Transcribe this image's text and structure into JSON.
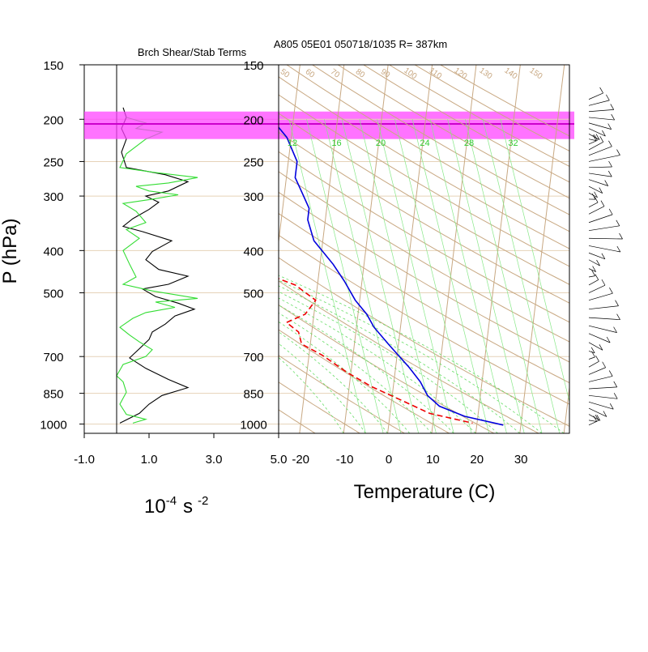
{
  "chart_data": [
    {
      "type": "line",
      "panel": "shear-stability",
      "title": "Brch Shear/Stab Terms",
      "xlabel_base": "10",
      "xlabel_exp1": "-4",
      "xlabel_unit": "s",
      "xlabel_exp2": "-2",
      "ylabel": "P (hPa)",
      "xlim": [
        -1.0,
        5.0
      ],
      "x_ticks": [
        "-1.0",
        "1.0",
        "3.0",
        "5.0"
      ],
      "x_tick_values": [
        -1,
        1,
        3,
        5
      ],
      "y_ticks": [
        "150",
        "200",
        "250",
        "300",
        "400",
        "500",
        "700",
        "850",
        "1000"
      ],
      "y_tick_values": [
        150,
        200,
        250,
        300,
        400,
        500,
        700,
        850,
        1000
      ],
      "ylim": [
        150,
        1050
      ],
      "y_scale": "log",
      "zero_line": 0,
      "series": [
        {
          "color": "#000000",
          "points": [
            [
              0.2,
              188
            ],
            [
              0.3,
              198
            ],
            [
              0.15,
              210
            ],
            [
              0.3,
              222
            ],
            [
              0.15,
              238
            ],
            [
              0.3,
              258
            ],
            [
              1.5,
              268
            ],
            [
              2.2,
              278
            ],
            [
              1.6,
              292
            ],
            [
              0.9,
              300
            ],
            [
              1.3,
              310
            ],
            [
              1.0,
              322
            ],
            [
              0.5,
              338
            ],
            [
              0.2,
              352
            ],
            [
              0.8,
              362
            ],
            [
              1.7,
              380
            ],
            [
              1.1,
              402
            ],
            [
              0.9,
              420
            ],
            [
              1.3,
              442
            ],
            [
              2.2,
              458
            ],
            [
              1.6,
              478
            ],
            [
              0.8,
              490
            ],
            [
              1.2,
              510
            ],
            [
              1.9,
              528
            ],
            [
              2.4,
              545
            ],
            [
              1.8,
              565
            ],
            [
              1.5,
              590
            ],
            [
              1.1,
              615
            ],
            [
              1.0,
              640
            ],
            [
              0.7,
              672
            ],
            [
              0.4,
              705
            ],
            [
              0.9,
              745
            ],
            [
              1.6,
              790
            ],
            [
              2.2,
              825
            ],
            [
              1.4,
              860
            ],
            [
              1.0,
              900
            ],
            [
              0.7,
              945
            ],
            [
              0.1,
              995
            ]
          ]
        },
        {
          "color": "#33dd33",
          "points": [
            [
              0.3,
              198
            ],
            [
              0.9,
              204
            ],
            [
              0.6,
              210
            ],
            [
              1.4,
              214
            ],
            [
              0.9,
              222
            ],
            [
              0.3,
              240
            ],
            [
              0.1,
              258
            ],
            [
              1.2,
              265
            ],
            [
              2.5,
              272
            ],
            [
              1.6,
              280
            ],
            [
              0.6,
              285
            ],
            [
              1.0,
              292
            ],
            [
              1.9,
              298
            ],
            [
              1.1,
              305
            ],
            [
              0.2,
              312
            ],
            [
              0.6,
              325
            ],
            [
              0.9,
              345
            ],
            [
              0.3,
              358
            ],
            [
              0.7,
              375
            ],
            [
              0.2,
              400
            ],
            [
              0.4,
              430
            ],
            [
              0.6,
              460
            ],
            [
              0.2,
              478
            ],
            [
              1.1,
              495
            ],
            [
              2.5,
              515
            ],
            [
              1.2,
              525
            ],
            [
              1.8,
              540
            ],
            [
              0.9,
              555
            ],
            [
              0.5,
              572
            ],
            [
              0.1,
              600
            ],
            [
              0.4,
              625
            ],
            [
              0.7,
              648
            ],
            [
              1.1,
              675
            ],
            [
              0.9,
              700
            ],
            [
              0.2,
              730
            ],
            [
              0.0,
              775
            ],
            [
              0.2,
              800
            ],
            [
              0.3,
              845
            ],
            [
              0.1,
              900
            ],
            [
              0.3,
              950
            ],
            [
              0.9,
              975
            ],
            [
              0.5,
              995
            ]
          ]
        }
      ]
    },
    {
      "type": "line",
      "panel": "skew-t",
      "title": "A805 05E01 050718/1035 R= 387km",
      "xlabel": "Temperature (C)",
      "x_ticks": [
        "-20",
        "-10",
        "0",
        "10",
        "20",
        "30"
      ],
      "x_tick_values": [
        -20,
        -10,
        0,
        10,
        20,
        30
      ],
      "xlim": [
        -25,
        41
      ],
      "y_ticks": [
        "150",
        "200",
        "250",
        "300",
        "400",
        "500",
        "700",
        "850",
        "1000"
      ],
      "y_tick_values": [
        150,
        200,
        250,
        300,
        400,
        500,
        700,
        850,
        1000
      ],
      "ylim": [
        150,
        1050
      ],
      "y_scale": "log",
      "skew_per_decade": 65,
      "highlight_band_hpa": [
        192,
        222
      ],
      "highlight_line_hpa": 205,
      "highlight_color": "#ff44ff",
      "mixing_ratio_labels": [
        "12",
        "16",
        "20",
        "24",
        "28",
        "32"
      ],
      "theta_labels": [
        "50",
        "60",
        "70",
        "80",
        "90",
        "100",
        "110",
        "120",
        "130",
        "140",
        "150"
      ],
      "series": [
        {
          "color": "#0000dd",
          "style": "solid",
          "points": [
            [
              -38,
              185
            ],
            [
              -31,
              220
            ],
            [
              -28,
              250
            ],
            [
              -28,
              272
            ],
            [
              -26,
              295
            ],
            [
              -24,
              320
            ],
            [
              -24,
              340
            ],
            [
              -22,
              380
            ],
            [
              -17,
              430
            ],
            [
              -14,
              470
            ],
            [
              -11,
              520
            ],
            [
              -8,
              560
            ],
            [
              -6,
              600
            ],
            [
              -2,
              660
            ],
            [
              3,
              740
            ],
            [
              6,
              800
            ],
            [
              8,
              860
            ],
            [
              11,
              910
            ],
            [
              17,
              960
            ],
            [
              26,
              1005
            ]
          ]
        },
        {
          "color": "#ee0000",
          "style": "dashed",
          "points": [
            [
              -63,
              210
            ],
            [
              -57,
              245
            ],
            [
              -52,
              265
            ],
            [
              -49,
              282
            ],
            [
              -55,
              320
            ],
            [
              -66,
              345
            ],
            [
              -78,
              368
            ],
            [
              -55,
              388
            ],
            [
              -34,
              405
            ],
            [
              -33,
              425
            ],
            [
              -30,
              460
            ],
            [
              -25,
              480
            ],
            [
              -20,
              520
            ],
            [
              -22,
              560
            ],
            [
              -26,
              585
            ],
            [
              -23,
              615
            ],
            [
              -22,
              655
            ],
            [
              -17,
              695
            ],
            [
              -11,
              760
            ],
            [
              -5,
              820
            ],
            [
              2,
              880
            ],
            [
              9,
              945
            ],
            [
              19,
              995
            ]
          ]
        }
      ]
    }
  ],
  "wind_barbs": {
    "color": "#000000",
    "levels_hpa": [
      180,
      186,
      192,
      198,
      204,
      210,
      216,
      222,
      228,
      235,
      242,
      250,
      258,
      266,
      275,
      285,
      295,
      305,
      318,
      330,
      345,
      360,
      375,
      390,
      405,
      420,
      440,
      460,
      480,
      500,
      520,
      545,
      570,
      595,
      620,
      650,
      680,
      710,
      740,
      770,
      800,
      830,
      860,
      890,
      920,
      950,
      980,
      1005
    ]
  }
}
